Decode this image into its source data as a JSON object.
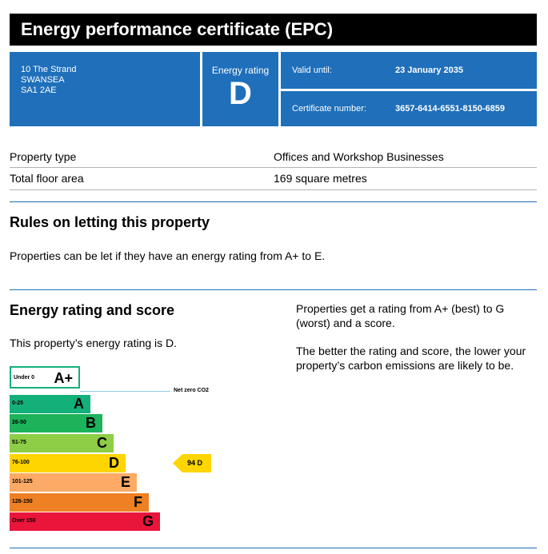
{
  "header": {
    "title": "Energy performance certificate (EPC)"
  },
  "address": {
    "line1": "10 The Strand",
    "line2": "SWANSEA",
    "line3": "SA1 2AE"
  },
  "rating_box": {
    "label": "Energy rating",
    "letter": "D"
  },
  "validity": {
    "label": "Valid until:",
    "value": "23 January 2035"
  },
  "certificate": {
    "label": "Certificate number:",
    "value": "3657-6414-6551-8150-6859"
  },
  "property": [
    {
      "key": "Property type",
      "value": "Offices and Workshop Businesses"
    },
    {
      "key": "Total floor area",
      "value": "169 square metres"
    }
  ],
  "letting": {
    "heading": "Rules on letting this property",
    "text": "Properties can be let if they have an energy rating from A+ to E."
  },
  "score_section": {
    "heading": "Energy rating and score",
    "statement": "This property’s energy rating is D.",
    "info1": "Properties get a rating from A+ (best) to G (worst) and a score.",
    "info2": "The better the rating and score, the lower your property’s carbon emissions are likely to be."
  },
  "chart_data": {
    "type": "bar",
    "categories": [
      "A+",
      "A",
      "B",
      "C",
      "D",
      "E",
      "F",
      "G"
    ],
    "ranges": [
      "Under 0",
      "0-25",
      "26-50",
      "51-75",
      "76-100",
      "101-125",
      "126-150",
      "Over 150"
    ],
    "colors": [
      "#ffffff",
      "#14b07a",
      "#1db35b",
      "#8dce46",
      "#ffd500",
      "#fcaa65",
      "#ef8023",
      "#e9153b"
    ],
    "net_zero_label": "Net zero CO2",
    "current": {
      "score": "94",
      "letter": "D",
      "color": "#ffd500"
    }
  }
}
